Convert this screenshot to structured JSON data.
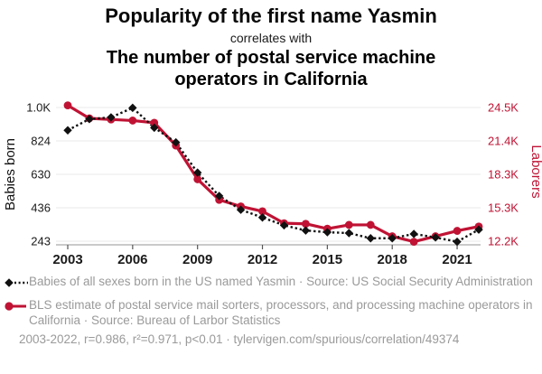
{
  "header": {
    "title": "Popularity of the first name Yasmin",
    "subtitle": "correlates with",
    "secondary_title": "The number of postal service machine\noperators in California"
  },
  "colors": {
    "accent_red": "#c01334",
    "series_black": "#111111",
    "legend_gray": "#9a9a9a",
    "gridline": "#e8e8e8",
    "axis_line": "#aaaaaa",
    "tick_text": "#1a1a1a"
  },
  "chart_data": {
    "type": "line",
    "x": [
      2003,
      2004,
      2005,
      2006,
      2007,
      2008,
      2009,
      2010,
      2011,
      2012,
      2013,
      2014,
      2015,
      2016,
      2017,
      2018,
      2019,
      2020,
      2021,
      2022
    ],
    "series": [
      {
        "name": "Babies of all sexes born in the US named Yasmin",
        "axis": "left",
        "style": "dotted",
        "marker": "diamond",
        "values": [
          885,
          950,
          960,
          1015,
          900,
          815,
          640,
          505,
          425,
          380,
          335,
          305,
          295,
          290,
          260,
          260,
          285,
          265,
          240,
          310
        ]
      },
      {
        "name": "BLS estimate of postal service mail sorters, processors, and processing machine operators in California",
        "axis": "right",
        "style": "solid",
        "marker": "circle",
        "values": [
          24700,
          23500,
          23400,
          23300,
          23100,
          21000,
          17900,
          16000,
          15400,
          14950,
          13850,
          13800,
          13350,
          13700,
          13700,
          12650,
          12150,
          12650,
          13150,
          13550
        ]
      }
    ],
    "left_axis": {
      "label": "Babies born",
      "ticks": [
        "1.0K",
        "824",
        "630",
        "436",
        "243"
      ],
      "tick_values": [
        1017,
        823.5,
        630,
        436.5,
        243
      ],
      "range": [
        243,
        1017
      ]
    },
    "right_axis": {
      "label": "Laborers",
      "ticks": [
        "24.5K",
        "21.4K",
        "18.3K",
        "15.3K",
        "12.2K"
      ],
      "tick_values": [
        24500,
        21425,
        18350,
        15275,
        12200
      ],
      "range": [
        12200,
        24500
      ]
    },
    "x_axis": {
      "ticks": [
        2003,
        2006,
        2009,
        2012,
        2015,
        2018,
        2021
      ],
      "range": [
        2003,
        2022
      ]
    },
    "grid": "horizontal-only",
    "legend_position": "below"
  },
  "legend": [
    {
      "marker": "black-diamond-dotted",
      "label": "Babies of all sexes born in the US named Yasmin · Source: US Social Security Administration"
    },
    {
      "marker": "red-circle-solid",
      "label": "BLS estimate of postal service mail sorters, processors, and processing machine operators in California · Source: Bureau of Larbor Statistics"
    }
  ],
  "footer": {
    "stats_text": "2003-2022, r=0.986, r²=0.971, p<0.01 · tylervigen.com/spurious/correlation/49374"
  }
}
